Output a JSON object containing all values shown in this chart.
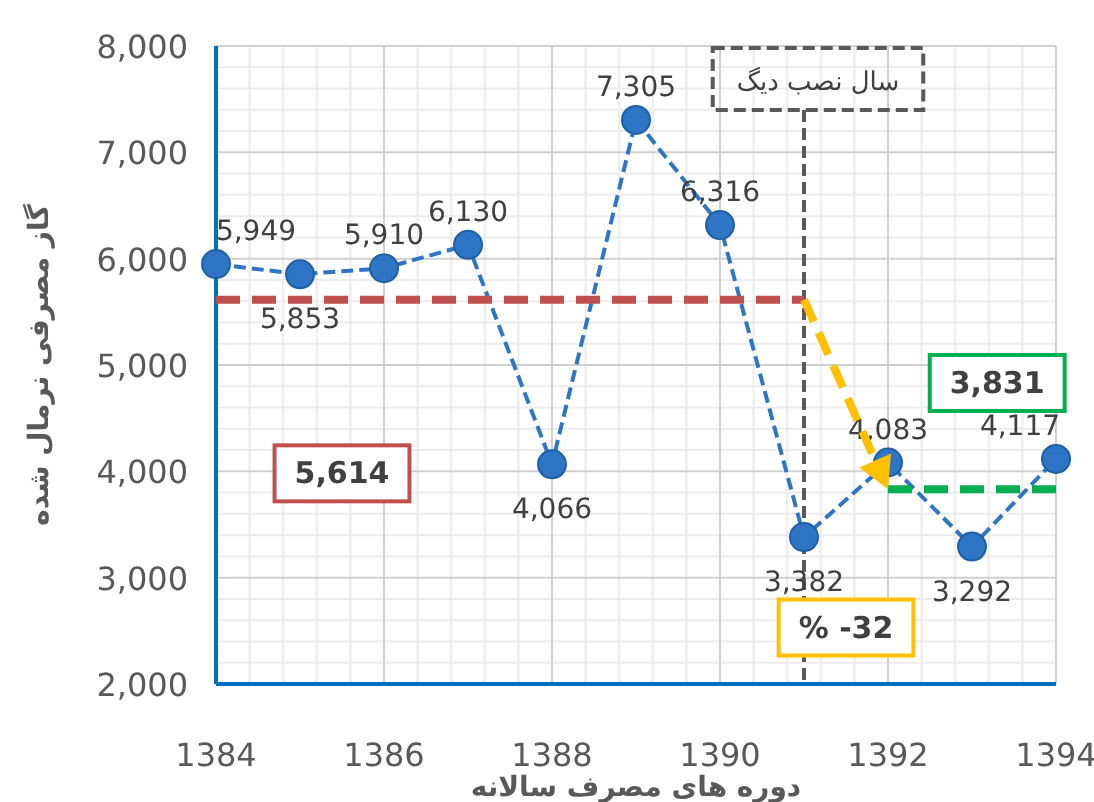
{
  "chart_data": {
    "type": "line",
    "xlabel": "دوره های مصرف سالانه",
    "ylabel": "گاز مصرفی نرمال شده",
    "xlim": [
      1384,
      1394
    ],
    "xticks": [
      1384,
      1386,
      1388,
      1390,
      1392,
      1394
    ],
    "ylim": [
      2000,
      8000
    ],
    "yticks": [
      {
        "value": 2000,
        "label": "2,000"
      },
      {
        "value": 3000,
        "label": "3,000"
      },
      {
        "value": 4000,
        "label": "4,000"
      },
      {
        "value": 5000,
        "label": "5,000"
      },
      {
        "value": 6000,
        "label": "6,000"
      },
      {
        "value": 7000,
        "label": "7,000"
      },
      {
        "value": 8000,
        "label": "8,000"
      }
    ],
    "grid": true,
    "marker": "circle",
    "line_style": "dashed",
    "series": [
      {
        "color": "#2e75c6",
        "x": [
          1384,
          1385,
          1386,
          1387,
          1388,
          1389,
          1390,
          1391,
          1392,
          1393,
          1394
        ],
        "values": [
          5949,
          5853,
          5910,
          6130,
          4066,
          7305,
          6316,
          3382,
          4083,
          3292,
          4117
        ],
        "value_labels": [
          "5,949",
          "5,853",
          "5,910",
          "6,130",
          "4,066",
          "7,305",
          "6,316",
          "3,382",
          "4,083",
          "3,292",
          "4,117"
        ]
      },
      {
        "color": "#c0504d",
        "type": "line",
        "marker": "none",
        "line_style": "dashed",
        "x": [
          1384,
          1391
        ],
        "values": [
          5614,
          5614
        ]
      },
      {
        "color": "#00b050",
        "type": "line",
        "marker": "none",
        "line_style": "dashed",
        "x": [
          1392,
          1394
        ],
        "values": [
          3831,
          3831
        ]
      }
    ],
    "ref_lines": [
      {
        "axis": "x",
        "value": 1391,
        "label": "سال نصب دیگ",
        "color": "#595959",
        "line_style": "dashed"
      }
    ],
    "annotations": [
      "5,614",
      "3,831",
      "% -32"
    ]
  }
}
